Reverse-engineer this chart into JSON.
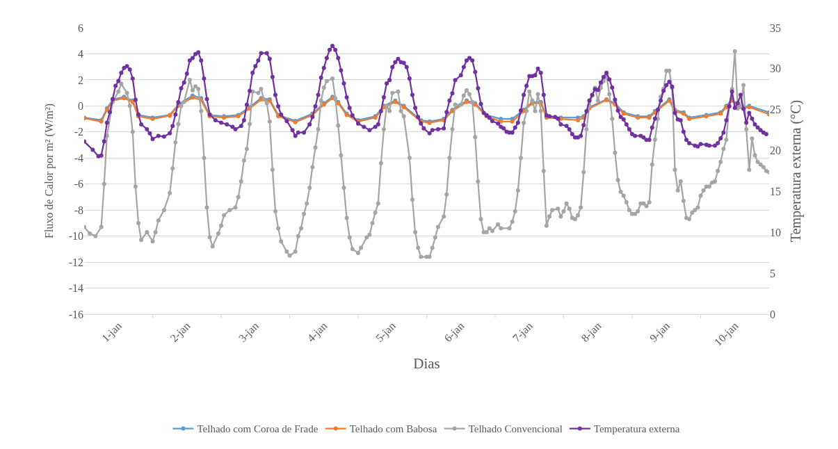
{
  "chart_data": {
    "type": "line",
    "xlabel": "Dias",
    "ylabel": "Fluxo de Calor por m² (W/m²)",
    "y2label": "Temperatura externa (°C)",
    "xlim": [
      "--01-01",
      "--01-11"
    ],
    "xticks": [
      {
        "value": "--01-01",
        "label": null
      },
      {
        "value": "--01-01T12:00",
        "label": "1-jan"
      },
      {
        "value": "--01-02",
        "label": null
      },
      {
        "value": "--01-02T12:00",
        "label": "2-jan"
      },
      {
        "value": "--01-03",
        "label": null
      },
      {
        "value": "--01-03T12:00",
        "label": "3-jan"
      },
      {
        "value": "--01-04",
        "label": null
      },
      {
        "value": "--01-04T12:00",
        "label": "4-jan"
      },
      {
        "value": "--01-05",
        "label": null
      },
      {
        "value": "--01-05T12:00",
        "label": "5-jan"
      },
      {
        "value": "--01-06",
        "label": null
      },
      {
        "value": "--01-06T12:00",
        "label": "6-jan"
      },
      {
        "value": "--01-07",
        "label": null
      },
      {
        "value": "--01-07T12:00",
        "label": "7-jan"
      },
      {
        "value": "--01-08",
        "label": null
      },
      {
        "value": "--01-08T12:00",
        "label": "8-jan"
      },
      {
        "value": "--01-09",
        "label": null
      },
      {
        "value": "--01-09T12:00",
        "label": "9-jan"
      },
      {
        "value": "--01-10",
        "label": null
      },
      {
        "value": "--01-10T12:00",
        "label": "10-jan"
      },
      {
        "value": "--01-11",
        "label": null
      }
    ],
    "ylim": [
      -16,
      6
    ],
    "yticks": [
      -16,
      -14,
      -12,
      -10,
      -8,
      -6,
      -4,
      -2,
      0,
      2,
      4,
      6
    ],
    "y2lim": [
      0,
      35
    ],
    "y2ticks": [
      0,
      5,
      10,
      15,
      20,
      25,
      30,
      35
    ],
    "grid": "y",
    "legend": "bottom",
    "marker": "circle",
    "line_style": "solid",
    "x": [
      "--01-01T00:00",
      "--01-01T06:00",
      "--01-01T08:00",
      "--01-01T10:00",
      "--01-01T14:00",
      "--01-01T17:00",
      "--01-01T19:00",
      "--01-02T00:00",
      "--01-02T06:00",
      "--01-02T09:00",
      "--01-02T14:00",
      "--01-02T17:00",
      "--01-02T20:00",
      "--01-03T01:00",
      "--01-03T06:00",
      "--01-03T10:00",
      "--01-03T14:00",
      "--01-03T17:00",
      "--01-03T20:00",
      "--01-04T02:00",
      "--01-04T08:00",
      "--01-04T12:00",
      "--01-04T15:00",
      "--01-04T17:00",
      "--01-04T20:00",
      "--01-05T00:00",
      "--01-05T06:00",
      "--01-05T09:00",
      "--01-05T13:00",
      "--01-05T16:00",
      "--01-05T22:00",
      "--01-06T01:00",
      "--01-06T06:00",
      "--01-06T09:00",
      "--01-06T14:00",
      "--01-06T17:00",
      "--01-06T21:00",
      "--01-07T02:00",
      "--01-07T06:00",
      "--01-07T10:00",
      "--01-07T13:00",
      "--01-07T16:00",
      "--01-07T18:00",
      "--01-07T23:00",
      "--01-08T05:00",
      "--01-08T07:00",
      "--01-08T09:00",
      "--01-08T15:00",
      "--01-08T18:00",
      "--01-08T21:00",
      "--01-09T02:00",
      "--01-09T06:00",
      "--01-09T08:00",
      "--01-09T13:00",
      "--01-09T15:00",
      "--01-09T18:00",
      "--01-09T20:00",
      "--01-10T02:00",
      "--01-10T07:00",
      "--01-10T09:00",
      "--01-10T11:00",
      "--01-10T13:00",
      "--01-10T15:00",
      "--01-10T17:00",
      "--01-11T00:00"
    ],
    "series": [
      {
        "name": "Telhado com Coroa de Frade",
        "color": "#5b9bd5",
        "values": [
          -0.9,
          -1.1,
          -0.2,
          0.5,
          0.7,
          0.4,
          -0.7,
          -0.9,
          -0.7,
          0.1,
          0.8,
          0.6,
          -0.7,
          -0.8,
          -0.7,
          -0.1,
          0.6,
          0.5,
          -0.7,
          -1.15,
          -0.6,
          0.2,
          0.7,
          0.3,
          -0.6,
          -1.1,
          -0.8,
          0.0,
          0.4,
          0.0,
          -1.1,
          -1.2,
          -1.0,
          -0.3,
          0.4,
          0.2,
          -0.7,
          -1.0,
          -1.0,
          -0.3,
          0.3,
          0.3,
          -0.8,
          -0.9,
          -0.9,
          -0.8,
          -0.1,
          0.5,
          0.2,
          -0.5,
          -0.8,
          -0.8,
          -0.4,
          0.5,
          -0.3,
          -0.5,
          -0.9,
          -0.7,
          -0.5,
          0.0,
          0.5,
          0.1,
          -0.1,
          0.0,
          -0.5
        ]
      },
      {
        "name": "Telhado com Babosa",
        "color": "#ed7d31",
        "values": [
          -0.95,
          -1.2,
          -0.3,
          0.4,
          0.6,
          0.3,
          -0.8,
          -1.0,
          -0.75,
          0.0,
          0.65,
          0.45,
          -0.8,
          -0.9,
          -0.8,
          -0.2,
          0.5,
          0.4,
          -0.8,
          -1.25,
          -0.7,
          0.1,
          0.6,
          0.2,
          -0.7,
          -1.2,
          -0.9,
          -0.1,
          0.3,
          -0.1,
          -1.2,
          -1.3,
          -1.1,
          -0.4,
          0.3,
          0.1,
          -0.8,
          -1.2,
          -1.2,
          -0.4,
          0.2,
          0.2,
          -0.9,
          -1.0,
          -1.1,
          -0.9,
          -0.2,
          0.45,
          0.1,
          -0.6,
          -0.9,
          -0.9,
          -0.5,
          0.4,
          -0.4,
          -0.6,
          -1.0,
          -0.8,
          -0.6,
          -0.1,
          0.4,
          0.0,
          -0.2,
          -0.1,
          -0.65
        ]
      },
      {
        "name": "Telhado Convencional",
        "color": "#a5a5a5",
        "x": [
          "--01-01T00:00",
          "--01-01T02:00",
          "--01-01T04:00",
          "--01-01T06:00",
          "--01-01T07:00",
          "--01-01T08:00",
          "--01-01T10:00",
          "--01-01T12:00",
          "--01-01T13:00",
          "--01-01T15:00",
          "--01-01T16:00",
          "--01-01T17:00",
          "--01-01T18:00",
          "--01-01T19:00",
          "--01-01T20:00",
          "--01-01T22:00",
          "--01-02T00:00",
          "--01-02T01:00",
          "--01-02T02:00",
          "--01-02T04:00",
          "--01-02T06:00",
          "--01-02T07:00",
          "--01-02T08:00",
          "--01-02T09:00",
          "--01-02T10:00",
          "--01-02T11:00",
          "--01-02T13:00",
          "--01-02T14:00",
          "--01-02T15:00",
          "--01-02T16:00",
          "--01-02T17:00",
          "--01-02T18:00",
          "--01-02T19:00",
          "--01-02T20:00",
          "--01-02T21:00",
          "--01-02T23:00",
          "--01-03T00:00",
          "--01-03T01:00",
          "--01-03T03:00",
          "--01-03T05:00",
          "--01-03T06:00",
          "--01-03T07:00",
          "--01-03T08:00",
          "--01-03T09:00",
          "--01-03T10:00",
          "--01-03T11:00",
          "--01-03T13:00",
          "--01-03T14:00",
          "--01-03T15:00",
          "--01-03T16:00",
          "--01-03T17:00",
          "--01-03T18:00",
          "--01-03T19:00",
          "--01-03T20:00",
          "--01-03T21:00",
          "--01-03T23:00",
          "--01-04T00:00",
          "--01-04T02:00",
          "--01-04T03:00",
          "--01-04T04:00",
          "--01-04T05:00",
          "--01-04T06:00",
          "--01-04T07:00",
          "--01-04T08:00",
          "--01-04T09:00",
          "--01-04T10:00",
          "--01-04T11:00",
          "--01-04T12:00",
          "--01-04T13:00",
          "--01-04T15:00",
          "--01-04T16:00",
          "--01-04T17:00",
          "--01-04T18:00",
          "--01-04T19:00",
          "--01-04T20:00",
          "--01-04T21:00",
          "--01-04T22:00",
          "--01-05T00:00",
          "--01-05T01:00",
          "--01-05T03:00",
          "--01-05T04:00",
          "--01-05T05:00",
          "--01-05T06:00",
          "--01-05T07:00",
          "--01-05T08:00",
          "--01-05T09:00",
          "--01-05T10:00",
          "--01-05T11:00",
          "--01-05T12:00",
          "--01-05T14:00",
          "--01-05T15:00",
          "--01-05T16:00",
          "--01-05T18:00",
          "--01-05T19:00",
          "--01-05T20:00",
          "--01-05T21:00",
          "--01-05T22:00",
          "--01-06T00:00",
          "--01-06T01:00",
          "--01-06T02:00",
          "--01-06T03:00",
          "--01-06T04:00",
          "--01-06T06:00",
          "--01-06T07:00",
          "--01-06T08:00",
          "--01-06T09:00",
          "--01-06T10:00",
          "--01-06T12:00",
          "--01-06T13:00",
          "--01-06T14:00",
          "--01-06T15:00",
          "--01-06T16:00",
          "--01-06T17:00",
          "--01-06T18:00",
          "--01-06T19:00",
          "--01-06T20:00",
          "--01-06T21:00",
          "--01-06T22:00",
          "--01-06T23:00",
          "--01-07T01:00",
          "--01-07T02:00",
          "--01-07T05:00",
          "--01-07T06:00",
          "--01-07T07:00",
          "--01-07T08:00",
          "--01-07T09:00",
          "--01-07T10:00",
          "--01-07T11:00",
          "--01-07T12:00",
          "--01-07T13:00",
          "--01-07T14:00",
          "--01-07T15:00",
          "--01-07T16:00",
          "--01-07T17:00",
          "--01-07T18:00",
          "--01-07T19:00",
          "--01-07T20:00",
          "--01-07T22:00",
          "--01-07T23:00",
          "--01-08T00:00",
          "--01-08T01:00",
          "--01-08T02:00",
          "--01-08T03:00",
          "--01-08T04:00",
          "--01-08T05:00",
          "--01-08T06:00",
          "--01-08T07:00",
          "--01-08T08:00",
          "--01-08T09:00",
          "--01-08T10:00",
          "--01-08T11:00",
          "--01-08T12:00",
          "--01-08T13:00",
          "--01-08T14:00",
          "--01-08T15:00",
          "--01-08T16:00",
          "--01-08T17:00",
          "--01-08T18:00",
          "--01-08T19:00",
          "--01-08T20:00",
          "--01-08T21:00",
          "--01-08T22:00",
          "--01-08T23:00",
          "--01-09T00:00",
          "--01-09T01:00",
          "--01-09T02:00",
          "--01-09T03:00",
          "--01-09T04:00",
          "--01-09T05:00",
          "--01-09T06:00",
          "--01-09T07:00",
          "--01-09T08:00",
          "--01-09T09:00",
          "--01-09T10:00",
          "--01-09T11:00",
          "--01-09T12:00",
          "--01-09T13:00",
          "--01-09T14:00",
          "--01-09T15:00",
          "--01-09T16:00",
          "--01-09T17:00",
          "--01-09T18:00",
          "--01-09T19:00",
          "--01-09T20:00",
          "--01-09T21:00",
          "--01-09T22:00",
          "--01-09T23:00",
          "--01-10T00:00",
          "--01-10T01:00",
          "--01-10T02:00",
          "--01-10T03:00",
          "--01-10T04:00",
          "--01-10T05:00",
          "--01-10T06:00",
          "--01-10T07:00",
          "--01-10T08:00",
          "--01-10T09:00",
          "--01-10T10:00",
          "--01-10T11:00",
          "--01-10T12:00",
          "--01-10T13:00",
          "--01-10T14:00",
          "--01-10T15:00",
          "--01-10T16:00",
          "--01-10T17:00",
          "--01-10T18:00",
          "--01-10T19:00",
          "--01-10T20:00",
          "--01-10T21:00",
          "--01-10T22:00",
          "--01-10T23:00",
          "--01-11T00:00"
        ],
        "values": [
          -9.3,
          -9.8,
          -10.0,
          -9.3,
          -6.0,
          -2.3,
          0.3,
          1.1,
          1.7,
          1.0,
          0.0,
          -2.0,
          -6.2,
          -9.0,
          -10.3,
          -9.7,
          -10.4,
          -9.7,
          -8.8,
          -8.0,
          -6.7,
          -4.8,
          -2.8,
          -1.4,
          0.0,
          0.3,
          2.0,
          1.2,
          1.5,
          1.3,
          -0.4,
          -4.0,
          -7.8,
          -10.1,
          -10.8,
          -9.8,
          -9.2,
          -8.4,
          -8.0,
          -7.8,
          -7.0,
          -5.8,
          -4.2,
          -3.3,
          -1.4,
          1.1,
          1.0,
          1.3,
          0.5,
          0.2,
          -1.2,
          -4.9,
          -8.1,
          -9.4,
          -10.4,
          -11.2,
          -11.5,
          -11.2,
          -10.0,
          -9.4,
          -8.3,
          -7.5,
          -6.3,
          -4.7,
          -3.2,
          -1.8,
          0.4,
          1.4,
          1.9,
          2.1,
          0.6,
          -1.5,
          -3.8,
          -6.3,
          -8.6,
          -10.1,
          -11.0,
          -11.3,
          -10.9,
          -10.1,
          -9.9,
          -9.0,
          -8.2,
          -7.5,
          -4.4,
          -1.8,
          0.0,
          -0.4,
          1.0,
          1.1,
          -0.4,
          -0.8,
          -4.0,
          -7.2,
          -9.7,
          -10.9,
          -11.6,
          -11.6,
          -11.6,
          -10.9,
          -10.1,
          -9.3,
          -8.5,
          -6.8,
          -4.0,
          -1.8,
          0.1,
          0.1,
          0.8,
          1.2,
          0.9,
          0.3,
          -2.4,
          -5.8,
          -8.7,
          -9.7,
          -9.7,
          -9.4,
          -9.6,
          -9.1,
          -9.4,
          -9.4,
          -8.9,
          -8.1,
          -6.5,
          -4.0,
          -1.3,
          -0.4,
          1.1,
          0.4,
          -0.4,
          0.9,
          -0.4,
          -5.0,
          -9.2,
          -8.5,
          -8.0,
          -7.9,
          -8.5,
          -8.1,
          -7.5,
          -7.9,
          -8.6,
          -8.7,
          -8.4,
          -7.8,
          -5.1,
          -1.8,
          0.0,
          0.8,
          1.4,
          0.4,
          1.4,
          1.9,
          2.3,
          0.9,
          -1.0,
          -3.6,
          -5.7,
          -6.6,
          -6.9,
          -7.4,
          -8.0,
          -8.3,
          -8.3,
          -8.1,
          -7.5,
          -7.5,
          -7.7,
          -7.4,
          -4.5,
          -2.6,
          -1.0,
          0.7,
          1.3,
          2.7,
          2.7,
          1.4,
          -4.9,
          -6.5,
          -5.8,
          -7.3,
          -8.6,
          -8.7,
          -8.2,
          -8.0,
          -7.8,
          -6.9,
          -6.5,
          -6.2,
          -6.2,
          -5.9,
          -5.8,
          -5.0,
          -4.3,
          -3.3,
          -2.6,
          0.0,
          1.3,
          4.2,
          -0.2,
          -0.1,
          1.6,
          -1.8,
          -4.9,
          -2.5,
          -3.8,
          -4.3,
          -4.5,
          -4.7,
          -5.0,
          -5.1
        ]
      },
      {
        "name": "Temperatura externa",
        "color": "#7030a0",
        "axis": "y2",
        "x": [
          "--01-01T00:00",
          "--01-01T03:00",
          "--01-01T05:00",
          "--01-01T06:00",
          "--01-01T07:00",
          "--01-01T08:00",
          "--01-01T09:00",
          "--01-01T10:00",
          "--01-01T11:00",
          "--01-01T12:00",
          "--01-01T13:00",
          "--01-01T14:00",
          "--01-01T15:00",
          "--01-01T16:00",
          "--01-01T17:00",
          "--01-01T18:00",
          "--01-01T19:00",
          "--01-01T20:00",
          "--01-01T22:00",
          "--01-01T23:00",
          "--01-02T00:00",
          "--01-02T02:00",
          "--01-02T04:00",
          "--01-02T06:00",
          "--01-02T07:00",
          "--01-02T08:00",
          "--01-02T09:00",
          "--01-02T10:00",
          "--01-02T11:00",
          "--01-02T12:00",
          "--01-02T13:00",
          "--01-02T14:00",
          "--01-02T15:00",
          "--01-02T16:00",
          "--01-02T17:00",
          "--01-02T18:00",
          "--01-02T19:00",
          "--01-02T20:00",
          "--01-02T22:00",
          "--01-03T00:00",
          "--01-03T02:00",
          "--01-03T04:00",
          "--01-03T05:00",
          "--01-03T07:00",
          "--01-03T08:00",
          "--01-03T09:00",
          "--01-03T10:00",
          "--01-03T11:00",
          "--01-03T12:00",
          "--01-03T13:00",
          "--01-03T14:00",
          "--01-03T16:00",
          "--01-03T17:00",
          "--01-03T18:00",
          "--01-03T19:00",
          "--01-03T20:00",
          "--01-03T21:00",
          "--01-03T23:00",
          "--01-04T01:00",
          "--01-04T02:00",
          "--01-04T03:00",
          "--01-04T05:00",
          "--01-04T07:00",
          "--01-04T08:00",
          "--01-04T09:00",
          "--01-04T10:00",
          "--01-04T11:00",
          "--01-04T12:00",
          "--01-04T13:00",
          "--01-04T14:00",
          "--01-04T15:00",
          "--01-04T16:00",
          "--01-04T17:00",
          "--01-04T18:00",
          "--01-04T19:00",
          "--01-04T20:00",
          "--01-04T21:00",
          "--01-04T22:00",
          "--01-05T00:00",
          "--01-05T02:00",
          "--01-05T04:00",
          "--01-05T06:00",
          "--01-05T07:00",
          "--01-05T08:00",
          "--01-05T09:00",
          "--01-05T10:00",
          "--01-05T11:00",
          "--01-05T12:00",
          "--01-05T13:00",
          "--01-05T14:00",
          "--01-05T15:00",
          "--01-05T16:00",
          "--01-05T17:00",
          "--01-05T18:00",
          "--01-05T19:00",
          "--01-05T20:00",
          "--01-05T21:00",
          "--01-05T22:00",
          "--01-05T23:00",
          "--01-06T01:00",
          "--01-06T02:00",
          "--01-06T04:00",
          "--01-06T06:00",
          "--01-06T07:00",
          "--01-06T08:00",
          "--01-06T09:00",
          "--01-06T10:00",
          "--01-06T12:00",
          "--01-06T13:00",
          "--01-06T14:00",
          "--01-06T15:00",
          "--01-06T16:00",
          "--01-06T17:00",
          "--01-06T18:00",
          "--01-06T19:00",
          "--01-06T20:00",
          "--01-06T21:00",
          "--01-06T22:00",
          "--01-06T23:00",
          "--01-07T01:00",
          "--01-07T02:00",
          "--01-07T03:00",
          "--01-07T04:00",
          "--01-07T05:00",
          "--01-07T06:00",
          "--01-07T07:00",
          "--01-07T08:00",
          "--01-07T09:00",
          "--01-07T10:00",
          "--01-07T11:00",
          "--01-07T12:00",
          "--01-07T13:00",
          "--01-07T14:00",
          "--01-07T15:00",
          "--01-07T16:00",
          "--01-07T17:00",
          "--01-07T18:00",
          "--01-07T19:00",
          "--01-07T21:00",
          "--01-07T22:00",
          "--01-07T23:00",
          "--01-08T01:00",
          "--01-08T02:00",
          "--01-08T03:00",
          "--01-08T04:00",
          "--01-08T05:00",
          "--01-08T06:00",
          "--01-08T07:00",
          "--01-08T08:00",
          "--01-08T09:00",
          "--01-08T10:00",
          "--01-08T11:00",
          "--01-08T12:00",
          "--01-08T13:00",
          "--01-08T14:00",
          "--01-08T15:00",
          "--01-08T16:00",
          "--01-08T17:00",
          "--01-08T18:00",
          "--01-08T19:00",
          "--01-08T20:00",
          "--01-08T21:00",
          "--01-08T22:00",
          "--01-08T23:00",
          "--01-09T00:00",
          "--01-09T01:00",
          "--01-09T03:00",
          "--01-09T04:00",
          "--01-09T05:00",
          "--01-09T06:00",
          "--01-09T07:00",
          "--01-09T08:00",
          "--01-09T09:00",
          "--01-09T10:00",
          "--01-09T11:00",
          "--01-09T12:00",
          "--01-09T13:00",
          "--01-09T14:00",
          "--01-09T15:00",
          "--01-09T16:00",
          "--01-09T17:00",
          "--01-09T18:00",
          "--01-09T19:00",
          "--01-09T20:00",
          "--01-09T22:00",
          "--01-09T23:00",
          "--01-10T00:00",
          "--01-10T02:00",
          "--01-10T03:00",
          "--01-10T05:00",
          "--01-10T06:00",
          "--01-10T07:00",
          "--01-10T08:00",
          "--01-10T09:00",
          "--01-10T10:00",
          "--01-10T11:00",
          "--01-10T12:00",
          "--01-10T13:00",
          "--01-10T14:00",
          "--01-10T15:00",
          "--01-10T16:00",
          "--01-10T17:00",
          "--01-10T18:00",
          "--01-10T19:00",
          "--01-10T20:00",
          "--01-10T21:00",
          "--01-10T22:00",
          "--01-10T23:00"
        ],
        "values": [
          21.1,
          20.1,
          19.3,
          19.4,
          21.1,
          23.4,
          24.7,
          26.3,
          27.9,
          28.5,
          29.5,
          30.1,
          30.3,
          29.9,
          28.8,
          26.2,
          24.4,
          23.2,
          22.6,
          22.1,
          21.4,
          21.8,
          21.7,
          22.1,
          23.0,
          24.4,
          25.9,
          27.6,
          28.3,
          29.4,
          31.0,
          31.3,
          31.8,
          32.0,
          31.0,
          28.8,
          26.3,
          24.4,
          23.7,
          23.4,
          23.2,
          22.9,
          22.6,
          23.0,
          23.7,
          25.6,
          27.3,
          29.5,
          30.3,
          31.0,
          31.9,
          31.9,
          31.2,
          29.0,
          26.8,
          25.4,
          24.4,
          23.6,
          22.5,
          21.8,
          22.2,
          22.2,
          23.2,
          24.1,
          25.4,
          26.8,
          28.9,
          30.1,
          31.3,
          32.3,
          32.8,
          32.3,
          31.3,
          29.8,
          28.2,
          26.5,
          25.2,
          24.3,
          23.3,
          22.9,
          22.5,
          22.9,
          23.2,
          24.8,
          26.5,
          28.2,
          28.6,
          30.2,
          30.8,
          31.2,
          30.8,
          30.7,
          30.2,
          28.8,
          26.8,
          25.2,
          24.1,
          23.3,
          22.7,
          22.1,
          22.5,
          22.6,
          22.7,
          24.7,
          26.1,
          27.0,
          28.6,
          29.2,
          30.2,
          31.0,
          31.3,
          31.0,
          29.6,
          27.6,
          25.7,
          24.6,
          24.3,
          24.0,
          23.6,
          23.3,
          22.9,
          22.7,
          22.3,
          22.2,
          22.2,
          22.8,
          23.4,
          24.9,
          26.8,
          27.9,
          29.1,
          29.1,
          29.2,
          30.0,
          29.5,
          26.8,
          24.3,
          24.2,
          24.1,
          23.9,
          23.2,
          23.0,
          22.6,
          22.0,
          21.6,
          21.6,
          21.8,
          23.1,
          24.8,
          26.1,
          26.8,
          27.5,
          27.4,
          28.3,
          29.0,
          29.5,
          28.7,
          27.7,
          26.2,
          24.9,
          24.1,
          23.8,
          23.2,
          22.6,
          22.0,
          21.8,
          21.8,
          21.6,
          21.3,
          21.3,
          22.8,
          23.9,
          25.0,
          26.1,
          27.3,
          28.0,
          28.4,
          27.8,
          24.6,
          23.8,
          23.7,
          22.3,
          21.3,
          20.9,
          20.6,
          20.5,
          20.8,
          20.7,
          20.6,
          20.6,
          20.9,
          21.5,
          22.2,
          23.7,
          25.4,
          27.2,
          25.2,
          25.8,
          26.8,
          25.1,
          23.4,
          24.6,
          23.9,
          23.2,
          22.8,
          22.5,
          22.2,
          22.0
        ]
      }
    ]
  }
}
